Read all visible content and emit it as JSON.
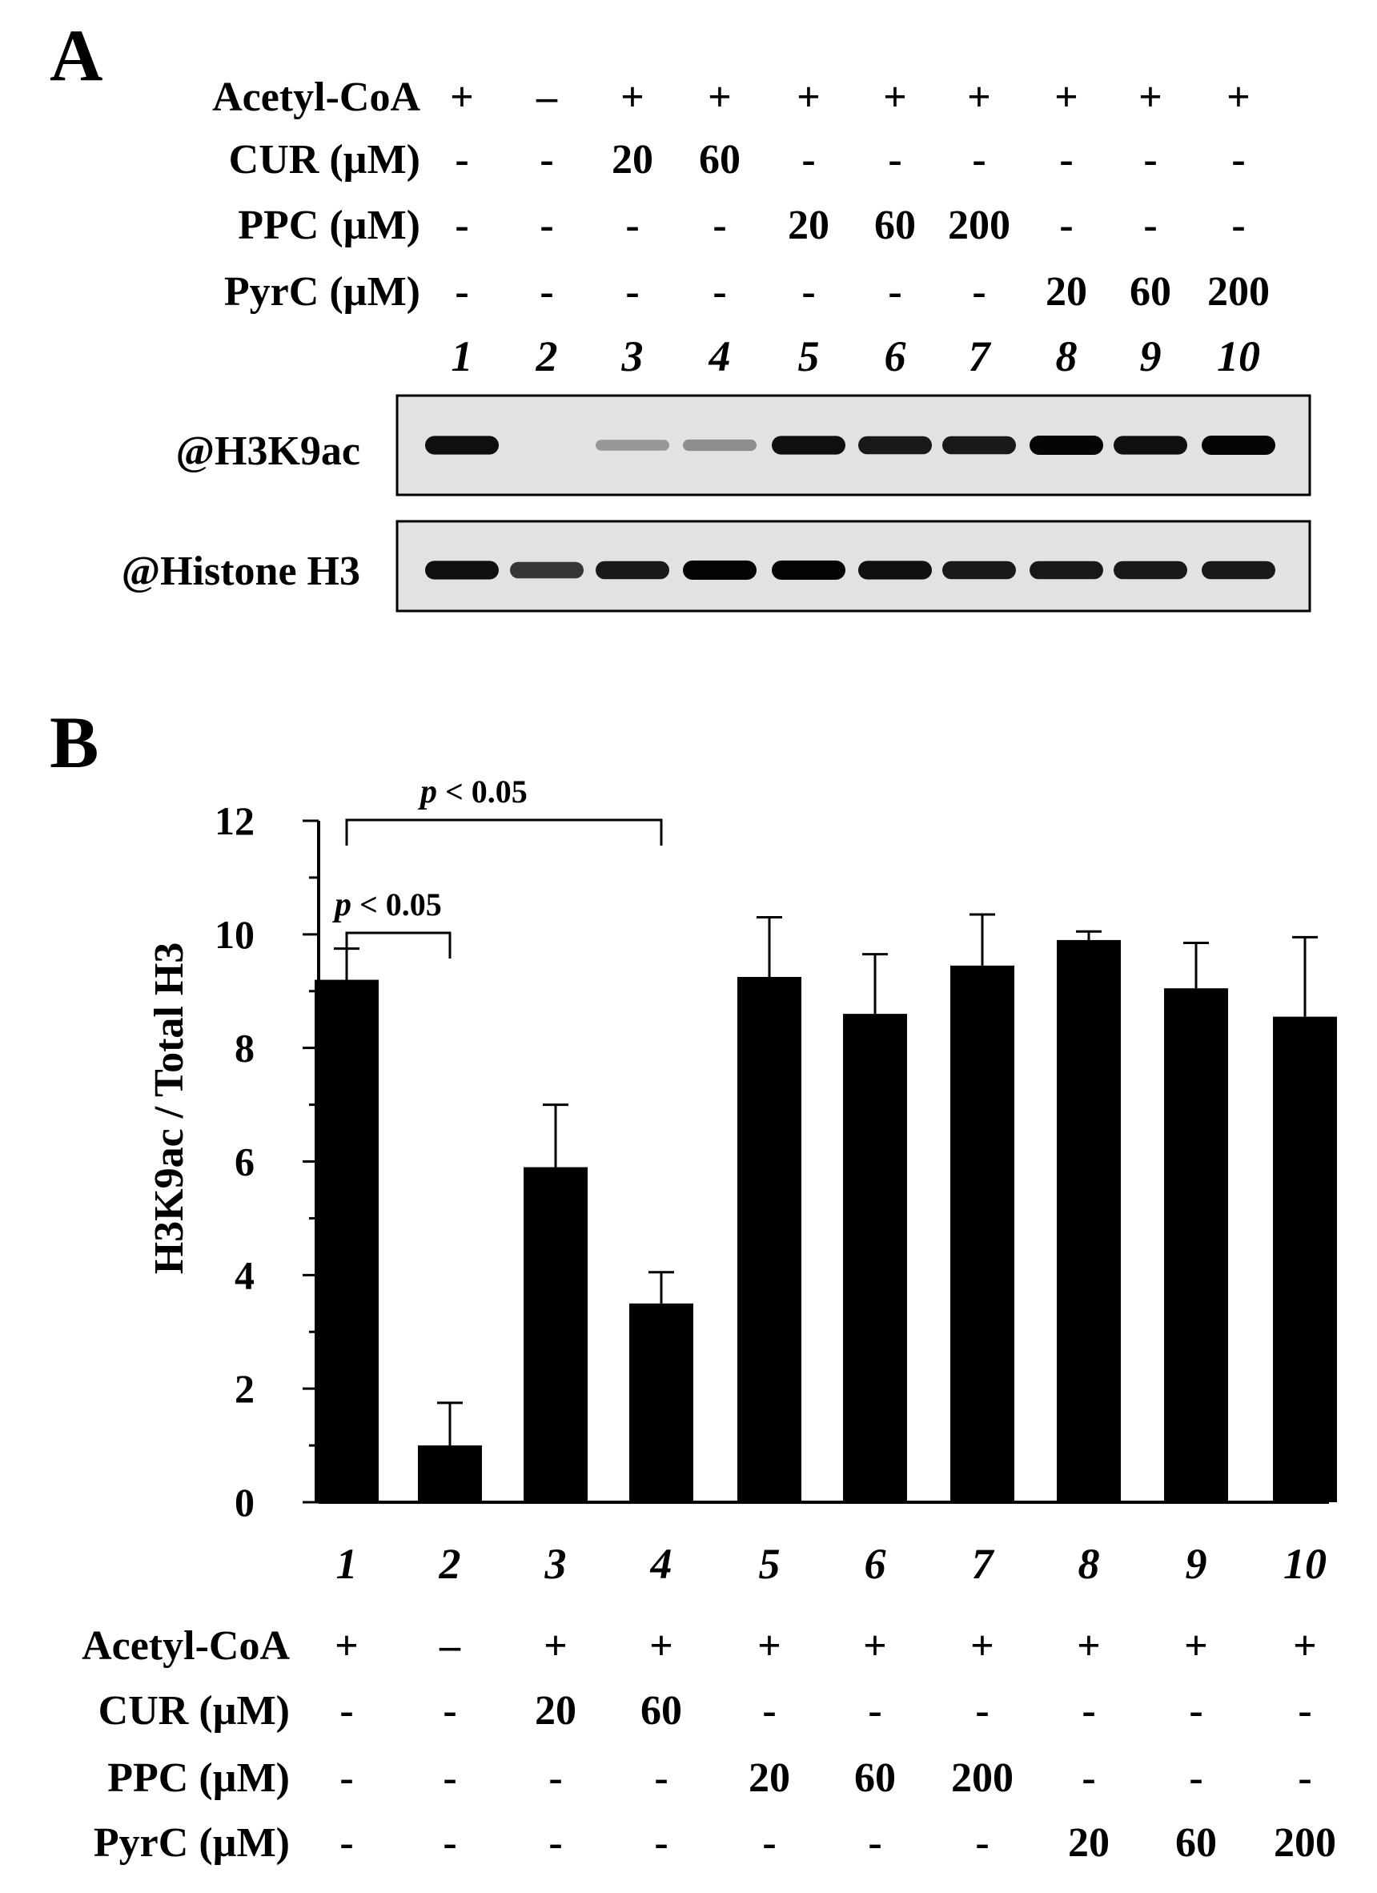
{
  "panel_a": {
    "letter": "A",
    "conditions": [
      {
        "label": "Acetyl-CoA",
        "values": [
          "+",
          "–",
          "+",
          "+",
          "+",
          "+",
          "+",
          "+",
          "+",
          "+"
        ]
      },
      {
        "label": "CUR (µM)",
        "values": [
          "-",
          "-",
          "20",
          "60",
          "-",
          "-",
          "-",
          "-",
          "-",
          "-"
        ]
      },
      {
        "label": "PPC (µM)",
        "values": [
          "-",
          "-",
          "-",
          "-",
          "20",
          "60",
          "200",
          "-",
          "-",
          "-"
        ]
      },
      {
        "label": "PyrC (µM)",
        "values": [
          "-",
          "-",
          "-",
          "-",
          "-",
          "-",
          "-",
          "20",
          "60",
          "200"
        ]
      }
    ],
    "lanes": [
      "1",
      "2",
      "3",
      "4",
      "5",
      "6",
      "7",
      "8",
      "9",
      "10"
    ],
    "blots": [
      {
        "label": "@H3K9ac",
        "band_intensity": [
          0.95,
          0.0,
          0.25,
          0.3,
          0.95,
          0.9,
          0.9,
          1.0,
          0.95,
          1.0
        ]
      },
      {
        "label": "@Histone H3",
        "band_intensity": [
          0.95,
          0.75,
          0.9,
          1.0,
          1.0,
          0.95,
          0.9,
          0.9,
          0.9,
          0.9
        ]
      }
    ]
  },
  "panel_b": {
    "letter": "B",
    "conditions": [
      {
        "label": "Acetyl-CoA",
        "values": [
          "+",
          "–",
          "+",
          "+",
          "+",
          "+",
          "+",
          "+",
          "+",
          "+"
        ]
      },
      {
        "label": "CUR (µM)",
        "values": [
          "-",
          "-",
          "20",
          "60",
          "-",
          "-",
          "-",
          "-",
          "-",
          "-"
        ]
      },
      {
        "label": "PPC (µM)",
        "values": [
          "-",
          "-",
          "-",
          "-",
          "20",
          "60",
          "200",
          "-",
          "-",
          "-"
        ]
      },
      {
        "label": "PyrC (µM)",
        "values": [
          "-",
          "-",
          "-",
          "-",
          "-",
          "-",
          "-",
          "20",
          "60",
          "200"
        ]
      }
    ]
  },
  "chart_data": {
    "type": "bar",
    "categories": [
      "1",
      "2",
      "3",
      "4",
      "5",
      "6",
      "7",
      "8",
      "9",
      "10"
    ],
    "values": [
      9.2,
      1.0,
      5.9,
      3.5,
      9.25,
      8.6,
      9.45,
      9.9,
      9.05,
      8.55
    ],
    "errors": [
      0.55,
      0.75,
      1.1,
      0.55,
      1.05,
      1.05,
      0.9,
      0.15,
      0.8,
      1.4
    ],
    "ylabel": "H3K9ac / Total H3",
    "xlabel": "",
    "ylim": [
      0,
      12
    ],
    "yticks": [
      "0",
      "2",
      "4",
      "6",
      "8",
      "10",
      "12"
    ],
    "bar_color": "#000000",
    "annotations": [
      {
        "p": "p",
        "text": " < 0.05",
        "from": "1",
        "to": "2"
      },
      {
        "p": "p",
        "text": " < 0.05",
        "from": "1",
        "to": "4"
      }
    ]
  }
}
